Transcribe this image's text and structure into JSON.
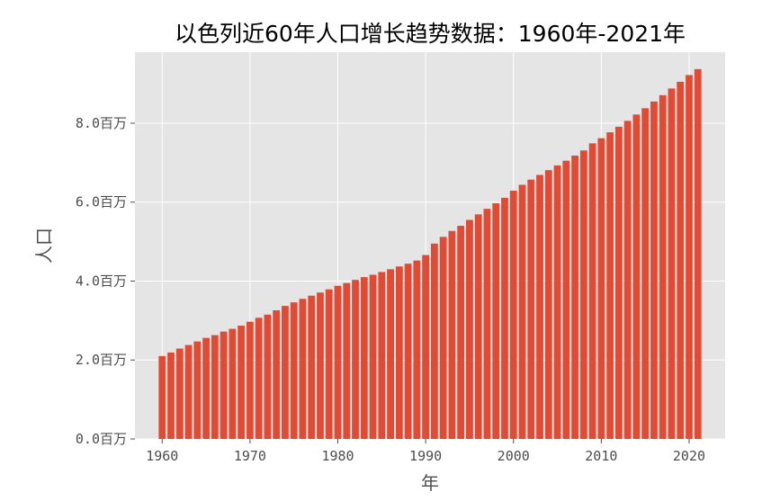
{
  "chart_data": {
    "type": "bar",
    "title": "以色列近60年人口增长趋势数据：1960年-2021年",
    "xlabel": "年",
    "ylabel": "人口",
    "x_ticks": [
      1960,
      1970,
      1980,
      1990,
      2000,
      2010,
      2020
    ],
    "y_ticks": [
      {
        "value": 0,
        "label": "0.0百万"
      },
      {
        "value": 2000000,
        "label": "2.0百万"
      },
      {
        "value": 4000000,
        "label": "4.0百万"
      },
      {
        "value": 6000000,
        "label": "6.0百万"
      },
      {
        "value": 8000000,
        "label": "8.0百万"
      }
    ],
    "xlim": [
      1958.4,
      1962.6
    ],
    "ylim": [
      0,
      9800000
    ],
    "grid": true,
    "legend": "none",
    "colors": {
      "bar": "#e24a33",
      "plot_bg": "#e5e5e5",
      "grid": "#ffffff",
      "tick_text": "#4d4d4d"
    },
    "series": [
      {
        "years": [
          1960,
          1961,
          1962,
          1963,
          1964,
          1965,
          1966,
          1967,
          1968,
          1969,
          1970,
          1971,
          1972,
          1973,
          1974,
          1975,
          1976,
          1977,
          1978,
          1979,
          1980,
          1981,
          1982,
          1983,
          1984,
          1985,
          1986,
          1987,
          1988,
          1989,
          1990,
          1991,
          1992,
          1993,
          1994,
          1995,
          1996,
          1997,
          1998,
          1999,
          2000,
          2001,
          2002,
          2003,
          2004,
          2005,
          2006,
          2007,
          2008,
          2009,
          2010,
          2011,
          2012,
          2013,
          2014,
          2015,
          2016,
          2017,
          2018,
          2019,
          2020,
          2021
        ],
        "values": [
          2100000,
          2190000,
          2290000,
          2380000,
          2470000,
          2560000,
          2630000,
          2720000,
          2790000,
          2870000,
          2970000,
          3070000,
          3150000,
          3260000,
          3370000,
          3460000,
          3550000,
          3630000,
          3710000,
          3790000,
          3880000,
          3950000,
          4030000,
          4100000,
          4160000,
          4230000,
          4300000,
          4370000,
          4440000,
          4520000,
          4660000,
          4950000,
          5120000,
          5270000,
          5400000,
          5550000,
          5690000,
          5830000,
          5970000,
          6110000,
          6290000,
          6440000,
          6570000,
          6690000,
          6810000,
          6930000,
          7050000,
          7180000,
          7310000,
          7490000,
          7620000,
          7770000,
          7910000,
          8060000,
          8220000,
          8380000,
          8550000,
          8710000,
          8880000,
          9050000,
          9220000,
          9370000
        ]
      }
    ]
  }
}
